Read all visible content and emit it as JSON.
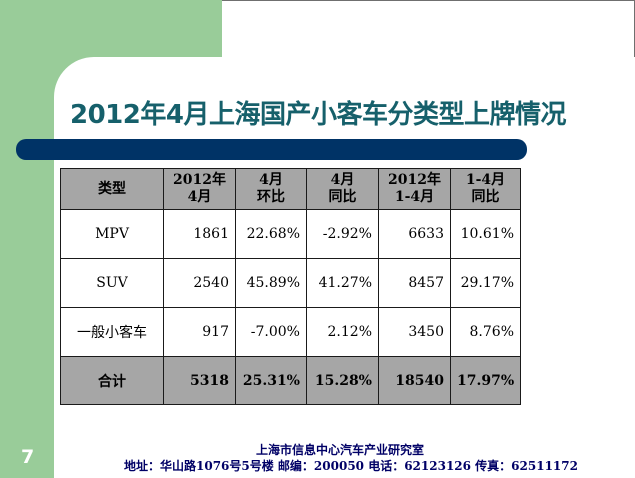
{
  "title": "2012年4月上海国产小客车分类型上牌情况",
  "colors": {
    "title": "#16606b",
    "title_bar": "#003366",
    "side_block": "#99cc99",
    "table_header": "#a6a6a6",
    "footer_text": "#000066"
  },
  "table": {
    "headers": [
      [
        "类型"
      ],
      [
        "2012年",
        "4月"
      ],
      [
        "4月",
        "环比"
      ],
      [
        "4月",
        "同比"
      ],
      [
        "2012年",
        "1-4月"
      ],
      [
        "1-4月",
        "同比"
      ]
    ],
    "rows": [
      [
        "MPV",
        "1861",
        "22.68%",
        "-2.92%",
        "6633",
        "10.61%"
      ],
      [
        "SUV",
        "2540",
        "45.89%",
        "41.27%",
        "8457",
        "29.17%"
      ],
      [
        "一般小客车",
        "917",
        "-7.00%",
        "2.12%",
        "3450",
        "8.76%"
      ]
    ],
    "total": [
      "合计",
      "5318",
      "25.31%",
      "15.28%",
      "18540",
      "17.97%"
    ]
  },
  "page_number": "7",
  "footer": {
    "org": "上海市信息中心汽车产业研究室",
    "address": "地址：华山路1076号5号楼   邮编：200050 电话：62123126  传真：62511172"
  }
}
